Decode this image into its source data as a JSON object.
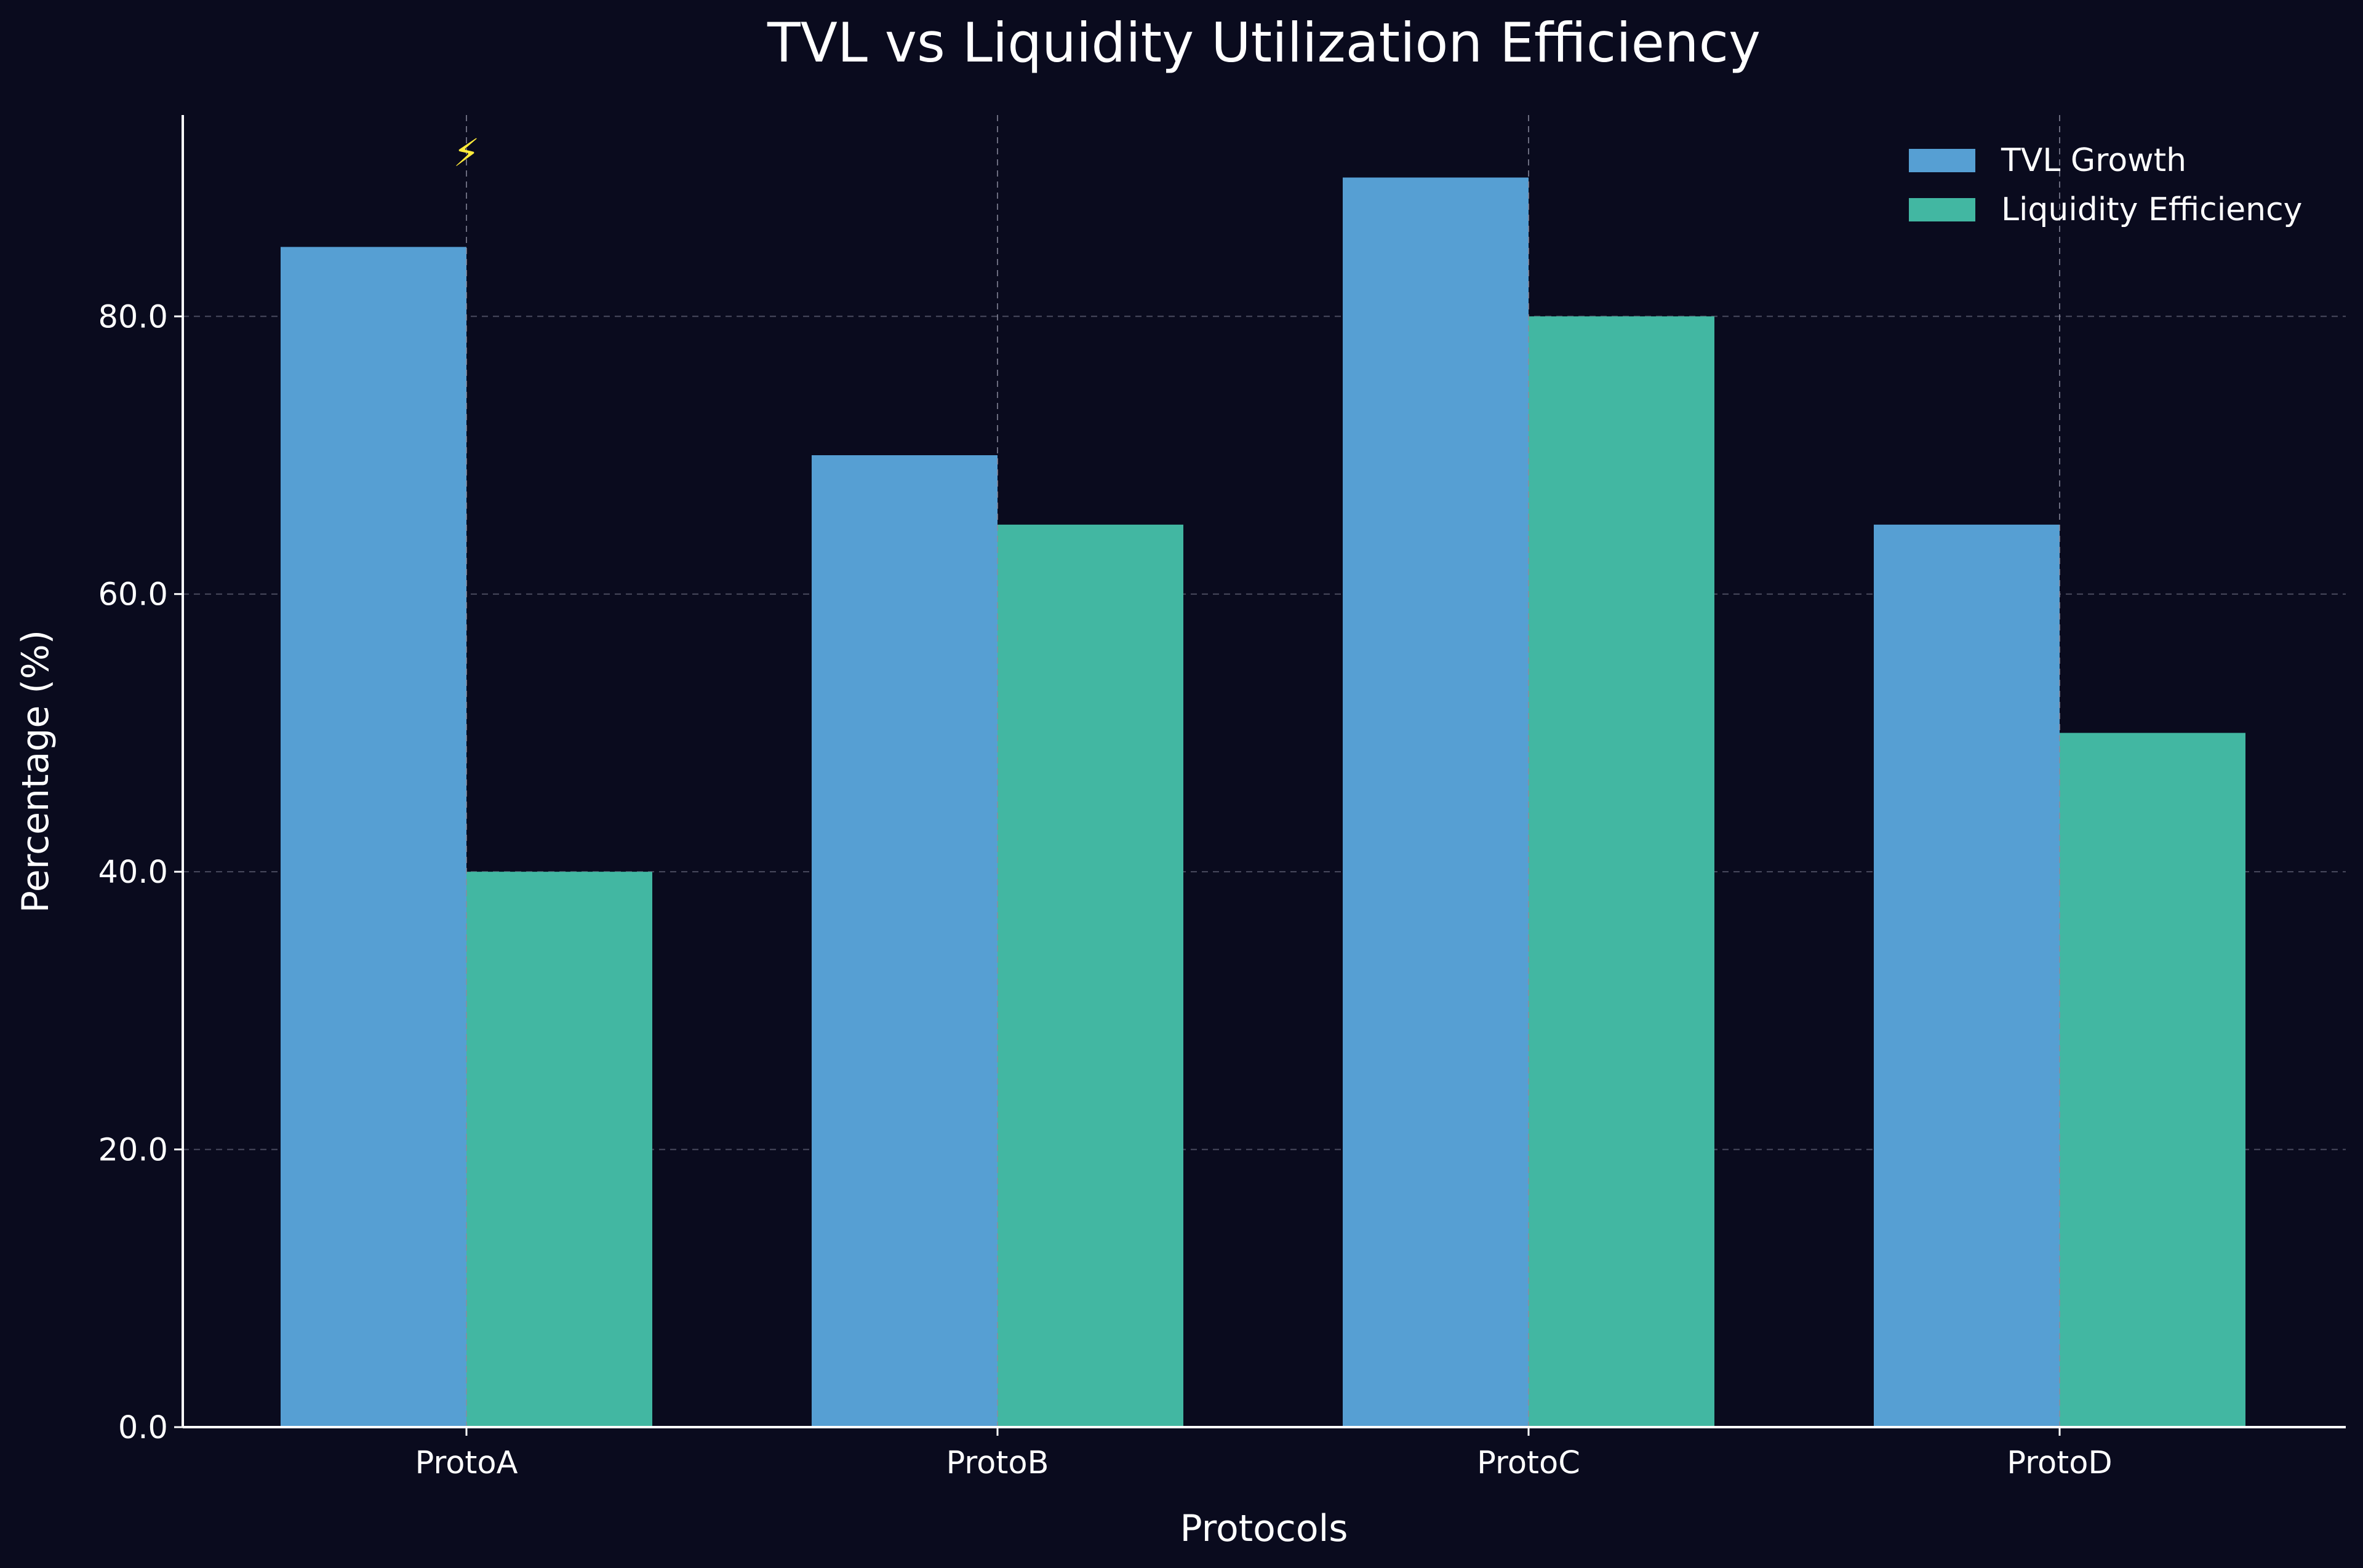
{
  "chart_data": {
    "type": "bar",
    "title": "TVL vs Liquidity Utilization Efficiency",
    "xlabel": "Protocols",
    "ylabel": "Percentage (%)",
    "categories": [
      "ProtoA",
      "ProtoB",
      "ProtoC",
      "ProtoD"
    ],
    "series": [
      {
        "name": "TVL Growth",
        "color": "#569fd3",
        "values": [
          85,
          70,
          90,
          65
        ]
      },
      {
        "name": "Liquidity Efficiency",
        "color": "#42b7a2",
        "values": [
          40,
          65,
          80,
          50
        ]
      }
    ],
    "ylim": [
      0,
      94.5
    ],
    "yticks": [
      0,
      20,
      40,
      60,
      80
    ],
    "ytick_labels": [
      "0.0",
      "20.0",
      "40.0",
      "60.0",
      "80.0"
    ],
    "grid": true,
    "legend_position": "top-right",
    "annotations": [
      {
        "category": "ProtoA",
        "text": "⚡",
        "color": "#ffeb3b"
      }
    ],
    "background": "#0a0b1e"
  }
}
